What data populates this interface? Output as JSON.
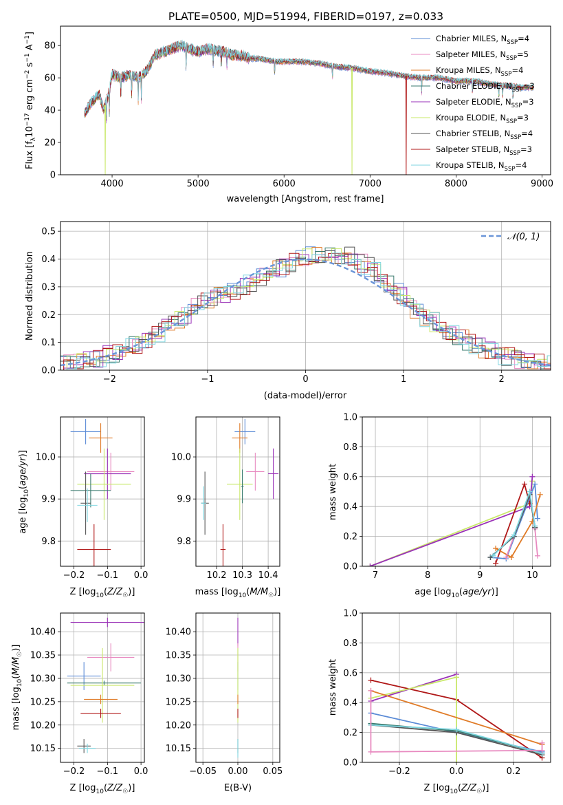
{
  "title": "PLATE=0500, MJD=51994, FIBERID=0197, z=0.033",
  "colors": {
    "chabrier_miles": "#5b8bd6",
    "salpeter_miles": "#e88ac0",
    "kroupa_miles": "#e07b27",
    "chabrier_elodie": "#3a7a6e",
    "salpeter_elodie": "#9a32b8",
    "kroupa_elodie": "#c9e86a",
    "chabrier_stelib": "#555555",
    "salpeter_stelib": "#b01818",
    "kroupa_stelib": "#7fd6e0",
    "normal_curve": "#6a95d8",
    "grid": "#b0b0b0"
  },
  "chart_data": [
    {
      "id": "spectrum",
      "type": "line",
      "xlabel": "wavelength [Angstrom, rest frame]",
      "ylabel": "Flux [f_λ 10^-17 erg cm^-2 s^-1 A^-1]",
      "xlim": [
        3400,
        9100
      ],
      "ylim": [
        0,
        92
      ],
      "xticks": [
        4000,
        5000,
        6000,
        7000,
        8000,
        9000
      ],
      "yticks": [
        0,
        20,
        40,
        60,
        80
      ],
      "grid": false,
      "legend_position": "upper right",
      "series_labels": [
        "Chabrier MILES, N_SSP=4",
        "Salpeter MILES, N_SSP=5",
        "Kroupa MILES, N_SSP=4",
        "Chabrier ELODIE, N_SSP=3",
        "Salpeter ELODIE, N_SSP=3",
        "Kroupa ELODIE, N_SSP=3",
        "Chabrier STELIB, N_SSP=4",
        "Salpeter STELIB, N_SSP=3",
        "Kroupa STELIB, N_SSP=4"
      ],
      "continuum": {
        "x": [
          3680,
          3750,
          3850,
          3900,
          3950,
          4000,
          4100,
          4200,
          4300,
          4400,
          4500,
          4600,
          4700,
          4800,
          4900,
          5000,
          5100,
          5200,
          5300,
          5400,
          5500,
          5600,
          5700,
          5800,
          5900,
          6000,
          6200,
          6400,
          6600,
          6800,
          7000,
          7200,
          7400,
          7600,
          7800,
          8000,
          8200,
          8400,
          8600,
          8800,
          8900
        ],
        "y": [
          38,
          44,
          50,
          40,
          48,
          62,
          60,
          62,
          60,
          64,
          74,
          76,
          78,
          80,
          78,
          76,
          78,
          77,
          76,
          74,
          74,
          72,
          72,
          71,
          70,
          70,
          70,
          69,
          67,
          66,
          64,
          63,
          61,
          60,
          60,
          58,
          58,
          56,
          55,
          54,
          54
        ]
      },
      "annotations": [
        {
          "series": "Kroupa ELODIE, N_SSP=3",
          "drop_to_zero_at": 3920
        },
        {
          "series": "Kroupa ELODIE, N_SSP=3",
          "drop_to_zero_at": 6790
        },
        {
          "series": "Salpeter STELIB, N_SSP=3",
          "drop_to_zero_at": 7420
        }
      ]
    },
    {
      "id": "residuals",
      "type": "line",
      "xlabel": "(data-model)/error",
      "ylabel": "Normed distribution",
      "xlim": [
        -2.5,
        2.5
      ],
      "ylim": [
        0,
        0.535
      ],
      "xticks": [
        -2,
        -1,
        0,
        1,
        2
      ],
      "yticks": [
        0.0,
        0.1,
        0.2,
        0.3,
        0.4,
        0.5
      ],
      "grid": true,
      "legend_position": "upper right",
      "legend_label": "𝒩(0, 1)",
      "reference_curve": "standard normal density"
    },
    {
      "id": "age_vs_Z",
      "type": "scatter",
      "xlabel": "Z [log10(Z/Z☉)]",
      "ylabel": "age  [log10(age/yr)]",
      "xlim": [
        -0.24,
        0.01
      ],
      "ylim": [
        9.74,
        10.095
      ],
      "xticks": [
        -0.2,
        -0.1,
        0.0
      ],
      "yticks": [
        9.8,
        9.9,
        10.0
      ],
      "grid": true,
      "points": [
        {
          "series": "Chabrier MILES",
          "x": -0.165,
          "xerr": 0.045,
          "y": 10.06,
          "yerr": 0.03
        },
        {
          "series": "Kroupa MILES",
          "x": -0.12,
          "xerr": 0.035,
          "y": 10.045,
          "yerr": 0.035
        },
        {
          "series": "Salpeter MILES",
          "x": -0.09,
          "xerr": 0.07,
          "y": 9.965,
          "yerr": 0.045
        },
        {
          "series": "Salpeter ELODIE",
          "x": -0.1,
          "xerr": 0.07,
          "y": 9.96,
          "yerr": 0.06
        },
        {
          "series": "Kroupa ELODIE",
          "x": -0.11,
          "xerr": 0.08,
          "y": 9.935,
          "yerr": 0.085
        },
        {
          "series": "Chabrier ELODIE",
          "x": -0.15,
          "xerr": 0.06,
          "y": 9.92,
          "yerr": 0.04
        },
        {
          "series": "Chabrier STELIB",
          "x": -0.165,
          "xerr": 0.015,
          "y": 9.89,
          "yerr": 0.075
        },
        {
          "series": "Kroupa STELIB",
          "x": -0.16,
          "xerr": 0.03,
          "y": 9.885,
          "yerr": 0.04
        },
        {
          "series": "Salpeter STELIB",
          "x": -0.14,
          "xerr": 0.05,
          "y": 9.78,
          "yerr": 0.06
        }
      ]
    },
    {
      "id": "age_vs_mass",
      "type": "scatter",
      "xlabel": "mass [log10(M/M☉)]",
      "ylabel": "",
      "xlim": [
        10.12,
        10.445
      ],
      "ylim": [
        9.74,
        10.095
      ],
      "xticks": [
        10.2,
        10.3,
        10.4
      ],
      "yticks": [
        9.8,
        9.9,
        10.0
      ],
      "grid": true,
      "points": [
        {
          "series": "Chabrier MILES",
          "x": 10.31,
          "xerr": 0.04,
          "y": 10.06,
          "yerr": 0.03
        },
        {
          "series": "Kroupa MILES",
          "x": 10.29,
          "xerr": 0.03,
          "y": 10.045,
          "yerr": 0.035
        },
        {
          "series": "Salpeter MILES",
          "x": 10.35,
          "xerr": 0.035,
          "y": 9.965,
          "yerr": 0.045
        },
        {
          "series": "Salpeter ELODIE",
          "x": 10.42,
          "xerr": 0.02,
          "y": 9.96,
          "yerr": 0.06
        },
        {
          "series": "Kroupa ELODIE",
          "x": 10.29,
          "xerr": 0.05,
          "y": 9.935,
          "yerr": 0.085
        },
        {
          "series": "Chabrier ELODIE",
          "x": 10.3,
          "xerr": 0.005,
          "y": 9.93,
          "yerr": 0.04
        },
        {
          "series": "Chabrier STELIB",
          "x": 10.155,
          "xerr": 0.015,
          "y": 9.89,
          "yerr": 0.075
        },
        {
          "series": "Kroupa STELIB",
          "x": 10.15,
          "xerr": 0.01,
          "y": 9.89,
          "yerr": 0.04
        },
        {
          "series": "Salpeter STELIB",
          "x": 10.225,
          "xerr": 0.01,
          "y": 9.78,
          "yerr": 0.06
        }
      ]
    },
    {
      "id": "weight_vs_age",
      "type": "line",
      "xlabel": "age  [log10(age/yr)]",
      "ylabel": "mass weight",
      "xlim": [
        6.75,
        10.35
      ],
      "ylim": [
        0,
        1.0
      ],
      "xticks": [
        7,
        8,
        9,
        10
      ],
      "yticks": [
        0.0,
        0.2,
        0.4,
        0.6,
        0.8,
        1.0
      ],
      "grid": true,
      "series": [
        {
          "name": "Kroupa ELODIE",
          "x": [
            6.9,
            9.95,
            10.0
          ],
          "y": [
            0.0,
            0.42,
            0.57
          ]
        },
        {
          "name": "Salpeter ELODIE",
          "x": [
            6.9,
            9.95,
            10.0
          ],
          "y": [
            0.0,
            0.4,
            0.6
          ]
        },
        {
          "name": "Salpeter STELIB",
          "x": [
            9.3,
            9.85,
            9.95
          ],
          "y": [
            0.02,
            0.55,
            0.42
          ]
        },
        {
          "name": "Chabrier MILES",
          "x": [
            9.2,
            9.5,
            10.05,
            10.1
          ],
          "y": [
            0.06,
            0.05,
            0.55,
            0.32
          ]
        },
        {
          "name": "Kroupa MILES",
          "x": [
            9.3,
            9.6,
            10.0,
            10.15
          ],
          "y": [
            0.12,
            0.06,
            0.3,
            0.48
          ]
        },
        {
          "name": "Salpeter MILES",
          "x": [
            9.5,
            9.95,
            10.05,
            10.1
          ],
          "y": [
            0.06,
            0.48,
            0.25,
            0.07
          ]
        },
        {
          "name": "Chabrier ELODIE",
          "x": [
            9.2,
            9.65,
            9.95,
            10.05
          ],
          "y": [
            0.06,
            0.2,
            0.48,
            0.26
          ]
        },
        {
          "name": "Chabrier STELIB",
          "x": [
            9.2,
            9.65,
            9.95,
            10.05
          ],
          "y": [
            0.06,
            0.2,
            0.48,
            0.26
          ]
        },
        {
          "name": "Kroupa STELIB",
          "x": [
            9.25,
            9.65,
            9.95,
            10.05
          ],
          "y": [
            0.07,
            0.21,
            0.5,
            0.27
          ]
        }
      ]
    },
    {
      "id": "mass_vs_Z",
      "type": "scatter",
      "xlabel": "Z [log10(Z/Z☉)]",
      "ylabel": "mass [log10(M/M☉)]",
      "xlim": [
        -0.24,
        0.01
      ],
      "ylim": [
        10.12,
        10.44
      ],
      "xticks": [
        -0.2,
        -0.1,
        0.0
      ],
      "yticks": [
        10.15,
        10.2,
        10.25,
        10.3,
        10.35,
        10.4
      ],
      "grid": true,
      "points": [
        {
          "series": "Salpeter ELODIE",
          "x": -0.1,
          "xerr": 0.11,
          "y": 10.42,
          "yerr": 0.01
        },
        {
          "series": "Salpeter MILES",
          "x": -0.09,
          "xerr": 0.07,
          "y": 10.345,
          "yerr": 0.03
        },
        {
          "series": "Chabrier MILES",
          "x": -0.17,
          "xerr": 0.05,
          "y": 10.305,
          "yerr": 0.03
        },
        {
          "series": "Chabrier ELODIE",
          "x": -0.11,
          "xerr": 0.11,
          "y": 10.29,
          "yerr": 0.005
        },
        {
          "series": "Kroupa ELODIE",
          "x": -0.115,
          "xerr": 0.095,
          "y": 10.285,
          "yerr": 0.08
        },
        {
          "series": "Kroupa MILES",
          "x": -0.12,
          "xerr": 0.05,
          "y": 10.255,
          "yerr": 0.01
        },
        {
          "series": "Salpeter STELIB",
          "x": -0.12,
          "xerr": 0.06,
          "y": 10.225,
          "yerr": 0.01
        },
        {
          "series": "Chabrier STELIB",
          "x": -0.17,
          "xerr": 0.02,
          "y": 10.155,
          "yerr": 0.015
        },
        {
          "series": "Kroupa STELIB",
          "x": -0.16,
          "xerr": 0.025,
          "y": 10.15,
          "yerr": 0.01
        }
      ]
    },
    {
      "id": "mass_vs_ebv",
      "type": "scatter",
      "xlabel": "E(B-V)",
      "ylabel": "",
      "xlim": [
        -0.06,
        0.06
      ],
      "ylim": [
        10.12,
        10.44
      ],
      "xticks": [
        -0.05,
        0.0,
        0.05
      ],
      "yticks": [
        10.15,
        10.2,
        10.25,
        10.3,
        10.35,
        10.4
      ],
      "grid": true,
      "points": [
        {
          "series": "Salpeter ELODIE",
          "x": 0.0,
          "xerr": 0.0,
          "y": 10.4,
          "yerr": 0.03
        },
        {
          "series": "Salpeter MILES",
          "x": 0.0,
          "xerr": 0.0,
          "y": 10.345,
          "yerr": 0.03
        },
        {
          "series": "Chabrier MILES",
          "x": 0.0,
          "xerr": 0.0,
          "y": 10.305,
          "yerr": 0.03
        },
        {
          "series": "Kroupa ELODIE",
          "x": 0.0,
          "xerr": 0.0,
          "y": 10.285,
          "yerr": 0.08
        },
        {
          "series": "Kroupa MILES",
          "x": 0.0,
          "xerr": 0.0,
          "y": 10.255,
          "yerr": 0.01
        },
        {
          "series": "Salpeter STELIB",
          "x": 0.0,
          "xerr": 0.0,
          "y": 10.225,
          "yerr": 0.01
        },
        {
          "series": "Chabrier STELIB",
          "x": 0.0,
          "xerr": 0.0,
          "y": 10.155,
          "yerr": 0.015
        },
        {
          "series": "Kroupa STELIB",
          "x": 0.0,
          "xerr": 0.0,
          "y": 10.15,
          "yerr": 0.02
        }
      ]
    },
    {
      "id": "weight_vs_Z",
      "type": "line",
      "xlabel": "Z [log10(Z/Z☉)]",
      "ylabel": "mass weight",
      "xlim": [
        -0.33,
        0.33
      ],
      "ylim": [
        0,
        1.0
      ],
      "xticks": [
        -0.2,
        0.0,
        0.2
      ],
      "yticks": [
        0.0,
        0.2,
        0.4,
        0.6,
        0.8,
        1.0
      ],
      "grid": true,
      "series": [
        {
          "name": "Salpeter STELIB",
          "x": [
            -0.3,
            0.0,
            0.3
          ],
          "y": [
            0.55,
            0.42,
            0.03
          ]
        },
        {
          "name": "Salpeter ELODIE",
          "x": [
            -0.3,
            0.0
          ],
          "y": [
            0.41,
            0.59
          ]
        },
        {
          "name": "Kroupa ELODIE",
          "x": [
            -0.3,
            0.0,
            0.0
          ],
          "y": [
            0.43,
            0.57,
            0.0
          ]
        },
        {
          "name": "Kroupa MILES",
          "x": [
            -0.3,
            0.3
          ],
          "y": [
            0.48,
            0.12
          ]
        },
        {
          "name": "Chabrier MILES",
          "x": [
            -0.3,
            0.0,
            0.3
          ],
          "y": [
            0.33,
            0.2,
            0.07
          ]
        },
        {
          "name": "Chabrier ELODIE",
          "x": [
            -0.3,
            0.0,
            0.3
          ],
          "y": [
            0.26,
            0.21,
            0.06
          ]
        },
        {
          "name": "Chabrier STELIB",
          "x": [
            -0.3,
            0.0,
            0.3
          ],
          "y": [
            0.25,
            0.2,
            0.05
          ]
        },
        {
          "name": "Kroupa STELIB",
          "x": [
            -0.3,
            0.0,
            0.3
          ],
          "y": [
            0.25,
            0.22,
            0.06
          ]
        },
        {
          "name": "Salpeter MILES",
          "x": [
            -0.3,
            -0.3,
            0.3,
            0.3
          ],
          "y": [
            0.48,
            0.07,
            0.08,
            0.13
          ]
        }
      ]
    }
  ]
}
